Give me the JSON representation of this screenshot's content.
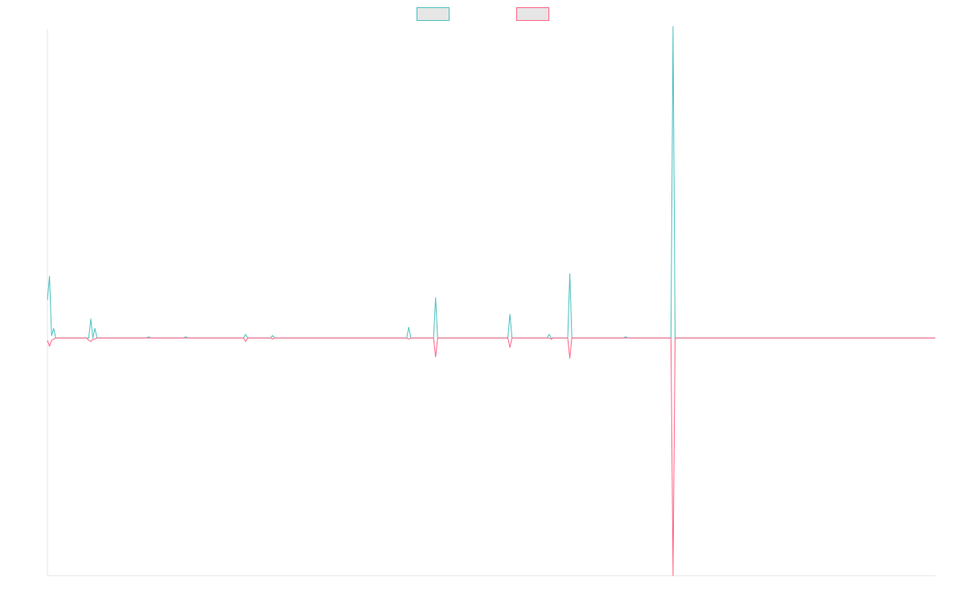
{
  "chart_data": {
    "type": "line",
    "title": "",
    "xlabel": "",
    "ylabel": "",
    "grid": false,
    "legend_position": "top-center",
    "ylim": [
      -100,
      130
    ],
    "x": [
      0,
      1,
      2,
      3,
      4,
      5,
      6,
      7,
      8,
      9,
      10,
      11,
      12,
      13,
      14,
      15,
      16,
      17,
      18,
      19,
      20,
      21,
      22,
      23,
      24,
      25,
      26,
      27,
      28,
      29,
      30,
      31,
      32,
      33,
      34,
      35,
      36,
      37,
      38,
      39,
      40,
      41,
      42,
      43,
      44,
      45,
      46,
      47,
      48,
      49,
      50,
      51,
      52,
      53,
      54,
      55,
      56,
      57,
      58,
      59,
      60,
      61,
      62,
      63,
      64,
      65,
      66,
      67,
      68,
      69,
      70,
      71,
      72,
      73,
      74,
      75,
      76,
      77,
      78,
      79,
      80,
      81,
      82,
      83,
      84,
      85,
      86,
      87,
      88,
      89,
      90,
      91,
      92,
      93,
      94,
      95,
      96,
      97,
      98,
      99,
      100,
      101,
      102,
      103,
      104,
      105,
      106,
      107,
      108,
      109,
      110,
      111,
      112,
      113,
      114,
      115,
      116,
      117,
      118,
      119,
      120,
      121,
      122,
      123,
      124,
      125,
      126,
      127,
      128,
      129,
      130,
      131,
      132,
      133,
      134,
      135,
      136,
      137,
      138,
      139,
      140,
      141,
      142,
      143,
      144,
      145,
      146,
      147,
      148,
      149,
      150,
      151,
      152,
      153,
      154,
      155,
      156,
      157,
      158,
      159,
      160,
      161,
      162,
      163,
      164,
      165,
      166,
      167,
      168,
      169,
      170,
      171,
      172,
      173,
      174,
      175,
      176,
      177,
      178,
      179,
      180,
      181,
      182,
      183,
      184,
      185,
      186,
      187,
      188,
      189,
      190,
      191,
      192,
      193,
      194,
      195,
      196,
      197,
      198,
      199,
      200,
      201,
      202,
      203,
      204,
      205,
      206,
      207,
      208,
      209,
      210,
      211,
      212,
      213,
      214,
      215,
      216,
      217,
      218,
      219,
      220,
      221,
      222,
      223,
      224,
      225,
      226,
      227,
      228,
      229,
      230,
      231,
      232,
      233,
      234,
      235,
      236,
      237,
      238,
      239,
      240,
      241,
      242,
      243,
      244,
      245,
      246,
      247,
      248,
      249,
      250,
      251,
      252,
      253,
      254,
      255,
      256,
      257,
      258,
      259,
      260,
      261,
      262,
      263,
      264,
      265,
      266,
      267,
      268,
      269,
      270,
      271,
      272,
      273,
      274,
      275,
      276,
      277,
      278,
      279,
      280,
      281,
      282,
      283,
      284,
      285,
      286,
      287,
      288,
      289,
      290,
      291,
      292,
      293,
      294,
      295,
      296,
      297,
      298,
      299,
      300,
      301,
      302,
      303,
      304,
      305,
      306,
      307,
      308,
      309,
      310,
      311,
      312,
      313,
      314,
      315,
      316,
      317,
      318,
      319,
      320,
      321,
      322,
      323,
      324,
      325,
      326,
      327,
      328,
      329,
      330,
      331,
      332,
      333,
      334,
      335,
      336,
      337,
      338,
      339,
      340,
      341,
      342,
      343,
      344,
      345,
      346,
      347,
      348,
      349,
      350,
      351,
      352,
      353,
      354,
      355,
      356,
      357,
      358,
      359,
      360,
      361,
      362,
      363,
      364,
      365,
      366,
      367,
      368,
      369,
      370,
      371,
      372,
      373,
      374,
      375,
      376,
      377,
      378,
      379,
      380,
      381,
      382,
      383,
      384,
      385,
      386,
      387,
      388,
      389,
      390,
      391,
      392,
      393,
      394,
      395,
      396,
      397,
      398,
      399,
      400,
      401,
      402,
      403,
      404,
      405,
      406,
      407,
      408,
      409,
      410,
      411,
      412,
      413,
      414,
      415,
      416,
      417,
      418,
      419,
      420,
      421,
      422,
      423,
      424,
      425,
      426,
      427,
      428,
      429,
      430
    ],
    "series": [
      {
        "name": "",
        "color": "#4bc0c0",
        "points": [
          [
            0,
            16
          ],
          [
            1,
            26
          ],
          [
            2,
            1
          ],
          [
            3,
            4
          ],
          [
            4,
            0
          ],
          [
            20,
            0
          ],
          [
            21,
            8
          ],
          [
            22,
            0
          ],
          [
            23,
            4
          ],
          [
            24,
            0
          ],
          [
            48,
            0
          ],
          [
            49,
            0.5
          ],
          [
            50,
            0
          ],
          [
            66,
            0
          ],
          [
            67,
            0.5
          ],
          [
            68,
            0
          ],
          [
            95,
            0
          ],
          [
            96,
            1.5
          ],
          [
            97,
            0
          ],
          [
            108,
            0
          ],
          [
            109,
            1
          ],
          [
            110,
            0
          ],
          [
            174,
            0
          ],
          [
            175,
            4.5
          ],
          [
            176,
            0
          ],
          [
            187,
            0
          ],
          [
            188,
            17
          ],
          [
            189,
            0
          ],
          [
            223,
            0
          ],
          [
            224,
            10
          ],
          [
            225,
            0
          ],
          [
            242,
            0
          ],
          [
            243,
            1.5
          ],
          [
            244,
            0
          ],
          [
            252,
            0
          ],
          [
            253,
            27
          ],
          [
            254,
            0
          ],
          [
            279,
            0
          ],
          [
            280,
            0.5
          ],
          [
            281,
            0
          ],
          [
            302,
            0
          ],
          [
            303,
            131
          ],
          [
            304,
            0
          ],
          [
            430,
            0
          ]
        ]
      },
      {
        "name": "",
        "color": "#ff6384",
        "points": [
          [
            0,
            -1
          ],
          [
            1,
            -3.5
          ],
          [
            2,
            -1
          ],
          [
            3,
            -0.5
          ],
          [
            4,
            0
          ],
          [
            19,
            0
          ],
          [
            20,
            -1
          ],
          [
            21,
            -1.5
          ],
          [
            22,
            -0.5
          ],
          [
            23,
            -0.5
          ],
          [
            24,
            0
          ],
          [
            95,
            0
          ],
          [
            96,
            -1.5
          ],
          [
            97,
            0
          ],
          [
            108,
            0
          ],
          [
            109,
            -0.5
          ],
          [
            110,
            0
          ],
          [
            174,
            0
          ],
          [
            175,
            -0.5
          ],
          [
            176,
            0
          ],
          [
            187,
            0
          ],
          [
            188,
            -8
          ],
          [
            189,
            0
          ],
          [
            223,
            0
          ],
          [
            224,
            -4
          ],
          [
            225,
            0
          ],
          [
            243,
            0
          ],
          [
            244,
            -0.5
          ],
          [
            245,
            0
          ],
          [
            252,
            0
          ],
          [
            253,
            -8.5
          ],
          [
            254,
            0
          ],
          [
            302,
            0
          ],
          [
            303,
            -100
          ],
          [
            304,
            0
          ],
          [
            430,
            0
          ]
        ]
      }
    ]
  }
}
